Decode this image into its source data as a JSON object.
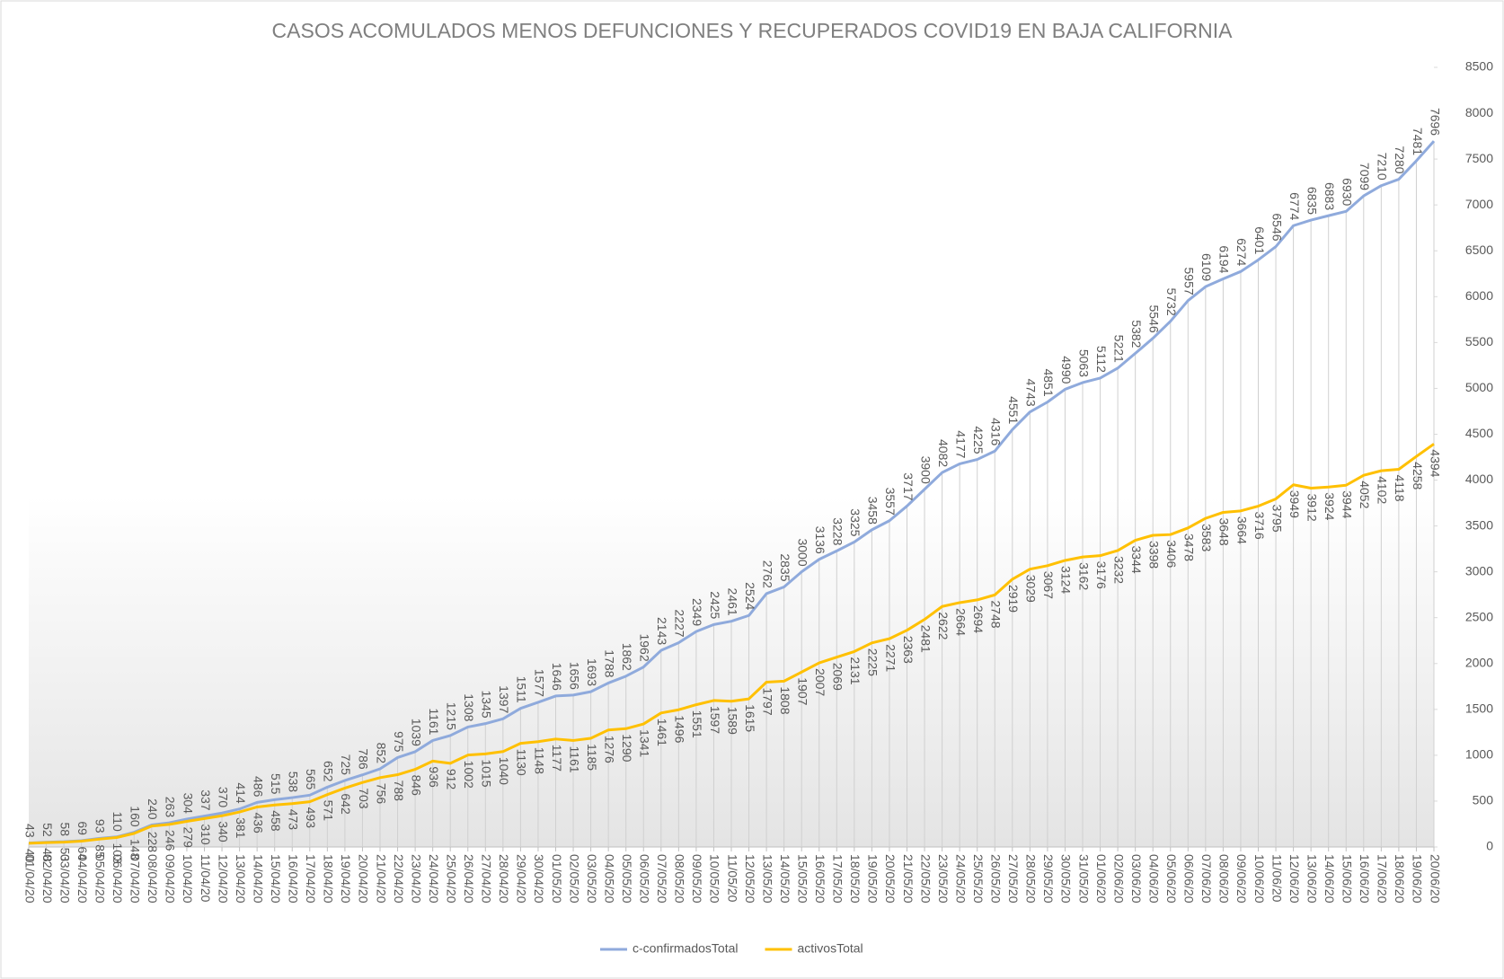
{
  "chart_data": {
    "type": "line",
    "title": "CASOS ACOMULADOS  MENOS DEFUNCIONES Y RECUPERADOS  COVID19  EN BAJA CALIFORNIA",
    "categories": [
      "01/04/20",
      "02/04/20",
      "03/04/20",
      "04/04/20",
      "05/04/20",
      "06/04/20",
      "07/04/20",
      "08/04/20",
      "09/04/20",
      "10/04/20",
      "11/04/20",
      "12/04/20",
      "13/04/20",
      "14/04/20",
      "15/04/20",
      "16/04/20",
      "17/04/20",
      "18/04/20",
      "19/04/20",
      "20/04/20",
      "21/04/20",
      "22/04/20",
      "23/04/20",
      "24/04/20",
      "25/04/20",
      "26/04/20",
      "27/04/20",
      "28/04/20",
      "29/04/20",
      "30/04/20",
      "01/05/20",
      "02/05/20",
      "03/05/20",
      "04/05/20",
      "05/05/20",
      "06/05/20",
      "07/05/20",
      "08/05/20",
      "09/05/20",
      "10/05/20",
      "11/05/20",
      "12/05/20",
      "13/05/20",
      "14/05/20",
      "15/05/20",
      "16/05/20",
      "17/05/20",
      "18/05/20",
      "19/05/20",
      "20/05/20",
      "21/05/20",
      "22/05/20",
      "23/05/20",
      "24/05/20",
      "25/05/20",
      "26/05/20",
      "27/05/20",
      "28/05/20",
      "29/05/20",
      "30/05/20",
      "31/05/20",
      "01/06/20",
      "02/06/20",
      "03/06/20",
      "04/06/20",
      "05/06/20",
      "06/06/20",
      "07/06/20",
      "08/06/20",
      "09/06/20",
      "10/06/20",
      "11/06/20",
      "12/06/20",
      "13/06/20",
      "14/06/20",
      "15/06/20",
      "16/06/20",
      "17/06/20",
      "18/06/20",
      "19/06/20",
      "20/06/20"
    ],
    "series": [
      {
        "name": "c-confirmadosTotal",
        "color": "#8faadc",
        "values": [
          43,
          52,
          58,
          69,
          93,
          110,
          160,
          240,
          263,
          304,
          337,
          370,
          414,
          486,
          515,
          538,
          565,
          652,
          725,
          786,
          852,
          975,
          1039,
          1161,
          1215,
          1308,
          1345,
          1397,
          1511,
          1577,
          1646,
          1656,
          1693,
          1788,
          1862,
          1962,
          2143,
          2227,
          2349,
          2425,
          2461,
          2524,
          2762,
          2835,
          3000,
          3136,
          3228,
          3325,
          3458,
          3557,
          3717,
          3900,
          4082,
          4177,
          4225,
          4316,
          4551,
          4743,
          4851,
          4990,
          5063,
          5112,
          5221,
          5382,
          5546,
          5732,
          5957,
          6109,
          6194,
          6274,
          6401,
          6546,
          6774,
          6835,
          6883,
          6930,
          7099,
          7210,
          7280,
          7481,
          7696
        ]
      },
      {
        "name": "activosTotal",
        "color": "#ffc000",
        "values": [
          40,
          48,
          53,
          64,
          85,
          103,
          148,
          228,
          246,
          279,
          310,
          340,
          381,
          436,
          458,
          473,
          493,
          571,
          642,
          703,
          756,
          788,
          846,
          936,
          912,
          1002,
          1015,
          1040,
          1130,
          1148,
          1177,
          1161,
          1185,
          1276,
          1290,
          1341,
          1461,
          1496,
          1551,
          1597,
          1589,
          1615,
          1797,
          1808,
          1907,
          2007,
          2069,
          2131,
          2225,
          2271,
          2363,
          2481,
          2622,
          2664,
          2694,
          2748,
          2919,
          3029,
          3067,
          3124,
          3162,
          3176,
          3232,
          3344,
          3398,
          3406,
          3478,
          3583,
          3648,
          3664,
          3716,
          3795,
          3949,
          3912,
          3924,
          3944,
          4052,
          4102,
          4118,
          4258,
          4394
        ]
      }
    ],
    "ylim": [
      0,
      8500
    ],
    "yticks": [
      0,
      500,
      1000,
      1500,
      2000,
      2500,
      3000,
      3500,
      4000,
      4500,
      5000,
      5500,
      6000,
      6500,
      7000,
      7500,
      8000,
      8500
    ],
    "legend": "bottom"
  }
}
